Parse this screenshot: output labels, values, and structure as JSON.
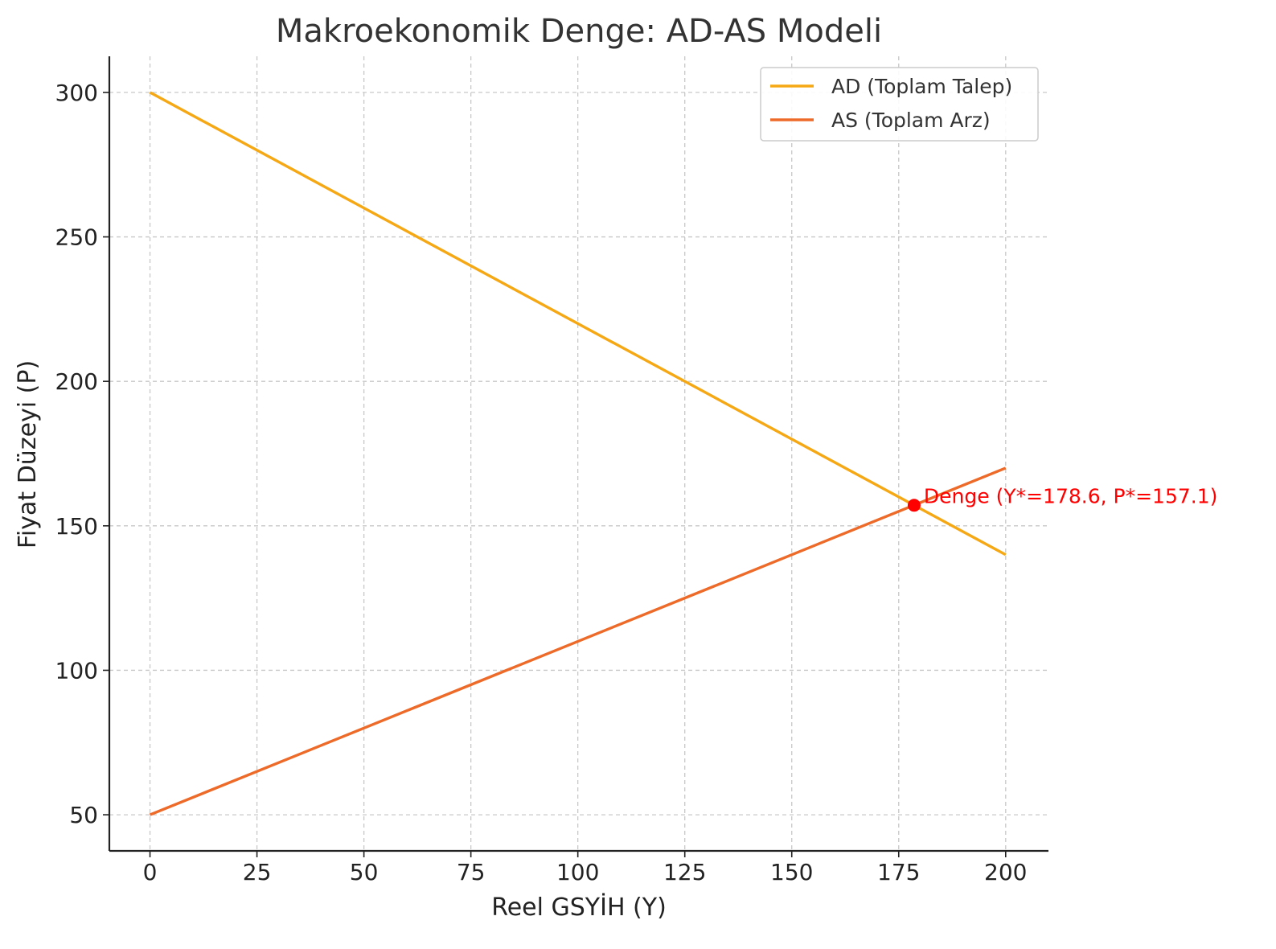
{
  "chart_data": {
    "type": "line",
    "title": "Makroekonomik Denge: AD-AS Modeli",
    "xlabel": "Reel GSYİH (Y)",
    "ylabel": "Fiyat Düzeyi (P)",
    "xlim": [
      -9.5,
      210
    ],
    "ylim": [
      37.5,
      312.5
    ],
    "xticks": [
      0,
      25,
      50,
      75,
      100,
      125,
      150,
      175,
      200
    ],
    "yticks": [
      50,
      100,
      150,
      200,
      250,
      300
    ],
    "grid": true,
    "legend_position": "top-right",
    "series": [
      {
        "name": "AD (Toplam Talep)",
        "color": "#F5A814",
        "x": [
          0,
          200
        ],
        "y": [
          300,
          140
        ]
      },
      {
        "name": "AS (Toplam Arz)",
        "color": "#EE6A28",
        "x": [
          0,
          200
        ],
        "y": [
          50,
          170
        ]
      }
    ],
    "annotations": [
      {
        "text": "Denge (Y*=178.6, P*=157.1)",
        "x": 178.6,
        "y": 157.1,
        "color": "#FF0000"
      }
    ]
  }
}
